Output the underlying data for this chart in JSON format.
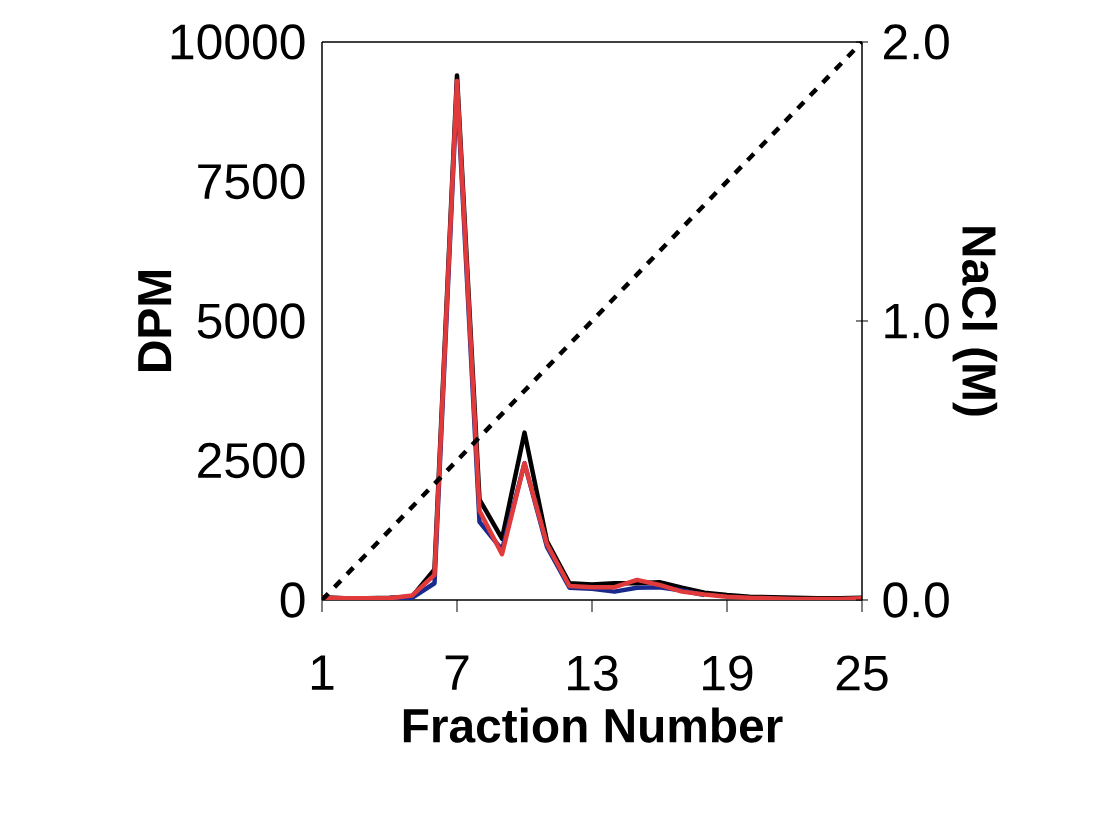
{
  "chart_data": {
    "type": "line",
    "xlabel": "Fraction Number",
    "ylabel": "DPM",
    "y2label": "NaCl (M)",
    "x": [
      1,
      2,
      3,
      4,
      5,
      6,
      7,
      8,
      9,
      10,
      11,
      12,
      13,
      14,
      15,
      16,
      17,
      18,
      19,
      20,
      21,
      22,
      23,
      24,
      25
    ],
    "xlim": [
      1,
      25
    ],
    "xticks": [
      1,
      7,
      13,
      19,
      25
    ],
    "ylim": [
      0,
      10000
    ],
    "yticks": [
      0,
      2500,
      5000,
      7500,
      10000
    ],
    "y2lim": [
      0,
      2
    ],
    "y2ticks": [
      {
        "value": 0,
        "label": "0.0"
      },
      {
        "value": 1,
        "label": "1.0"
      },
      {
        "value": 2,
        "label": "2.0"
      }
    ],
    "grid": false,
    "marker": "none",
    "line_style": "solid",
    "series": [
      {
        "color": "#000000",
        "values": [
          50,
          30,
          30,
          40,
          60,
          550,
          9400,
          1800,
          1100,
          3000,
          1050,
          300,
          280,
          300,
          300,
          320,
          220,
          130,
          90,
          60,
          50,
          40,
          30,
          30,
          40
        ]
      },
      {
        "color": "#1a2a8c",
        "values": [
          null,
          null,
          20,
          20,
          40,
          300,
          9200,
          1400,
          900,
          2450,
          950,
          220,
          200,
          150,
          220,
          230,
          170,
          90,
          null,
          null,
          null,
          null,
          null,
          null,
          null
        ]
      },
      {
        "color": "#e03a3a",
        "values": [
          40,
          30,
          30,
          30,
          80,
          450,
          9300,
          1600,
          820,
          2450,
          1000,
          250,
          230,
          230,
          360,
          270,
          150,
          100,
          60,
          40,
          30,
          20,
          20,
          20,
          30
        ]
      },
      {
        "color": "#000000",
        "x": [
          1,
          25
        ],
        "values": [
          0,
          2
        ],
        "axis": "y2",
        "line_style": "dashed"
      }
    ]
  }
}
